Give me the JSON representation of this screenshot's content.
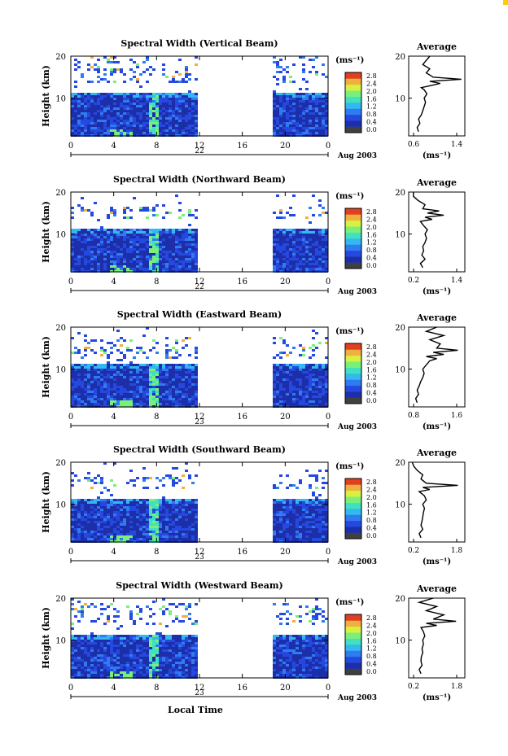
{
  "figure": {
    "xlabel_bottom": "Local Time",
    "date_label": "Aug 2003",
    "corner_color": "#ffcc00"
  },
  "colorbar": {
    "unit_label": "(ms⁻¹)",
    "tick_labels": [
      "0.0",
      "0.4",
      "0.8",
      "1.2",
      "1.6",
      "2.0",
      "2.4",
      "2.8"
    ],
    "colors": [
      "#404040",
      "#1d2fa8",
      "#2548e0",
      "#2f7cf0",
      "#33b8f0",
      "#40e0c0",
      "#7af07a",
      "#d8f040",
      "#f0b040",
      "#e04020"
    ]
  },
  "chart_data": [
    {
      "type": "heatmap",
      "title": "Spectral Width (Vertical Beam)",
      "ylabel": "Height (km)",
      "ylim": [
        1,
        20
      ],
      "yticks": [
        "20",
        "10"
      ],
      "xticks": [
        "0",
        "4",
        "8",
        "12",
        "16",
        "20",
        "0"
      ],
      "xlim": [
        0,
        24
      ],
      "day_label": "22",
      "data_gap": [
        12,
        18.6
      ],
      "heavy_height_top": 11.5,
      "upper_band": [
        14,
        20
      ],
      "plume_time": 7.5,
      "avg_title": "Average",
      "avg_xticks": [
        "0.6",
        "1.4"
      ],
      "avg_xlim": [
        0.6,
        1.4
      ],
      "avg_xlabel": "(ms⁻¹)",
      "avg_profile": [
        {
          "h": 2,
          "w": 0.74
        },
        {
          "h": 3,
          "w": 0.72
        },
        {
          "h": 4,
          "w": 0.76
        },
        {
          "h": 5,
          "w": 0.74
        },
        {
          "h": 6,
          "w": 0.78
        },
        {
          "h": 7,
          "w": 0.8
        },
        {
          "h": 8,
          "w": 0.82
        },
        {
          "h": 9,
          "w": 0.84
        },
        {
          "h": 10,
          "w": 0.82
        },
        {
          "h": 11,
          "w": 0.86
        },
        {
          "h": 12,
          "w": 0.82
        },
        {
          "h": 12.5,
          "w": 0.78
        },
        {
          "h": 13,
          "w": 0.92
        },
        {
          "h": 13.5,
          "w": 1.05
        },
        {
          "h": 14,
          "w": 0.9
        },
        {
          "h": 14.5,
          "w": 1.35
        },
        {
          "h": 15,
          "w": 0.95
        },
        {
          "h": 16,
          "w": 0.85
        },
        {
          "h": 17,
          "w": 0.9
        },
        {
          "h": 18,
          "w": 0.8
        },
        {
          "h": 19,
          "w": 0.85
        },
        {
          "h": 20,
          "w": 0.9
        }
      ]
    },
    {
      "type": "heatmap",
      "title": "Spectral Width (Northward Beam)",
      "ylabel": "Height (km)",
      "ylim": [
        1,
        20
      ],
      "yticks": [
        "20",
        "10"
      ],
      "xticks": [
        "0",
        "4",
        "8",
        "12",
        "16",
        "20",
        "0"
      ],
      "xlim": [
        0,
        24
      ],
      "day_label": "22",
      "data_gap": [
        12,
        18.6
      ],
      "heavy_height_top": 11.5,
      "upper_band": [
        14,
        17
      ],
      "plume_time": 7.5,
      "avg_title": "Average",
      "avg_xticks": [
        "0.2",
        "1.4"
      ],
      "avg_xlim": [
        0.2,
        1.4
      ],
      "avg_xlabel": "(ms⁻¹)",
      "avg_profile": [
        {
          "h": 2,
          "w": 0.5
        },
        {
          "h": 3,
          "w": 0.45
        },
        {
          "h": 4,
          "w": 0.55
        },
        {
          "h": 5,
          "w": 0.48
        },
        {
          "h": 6,
          "w": 0.52
        },
        {
          "h": 7,
          "w": 0.5
        },
        {
          "h": 8,
          "w": 0.55
        },
        {
          "h": 9,
          "w": 0.58
        },
        {
          "h": 10,
          "w": 0.55
        },
        {
          "h": 11,
          "w": 0.6
        },
        {
          "h": 12,
          "w": 0.52
        },
        {
          "h": 13,
          "w": 0.45
        },
        {
          "h": 13.5,
          "w": 0.7
        },
        {
          "h": 14,
          "w": 0.55
        },
        {
          "h": 14.5,
          "w": 0.95
        },
        {
          "h": 15,
          "w": 0.6
        },
        {
          "h": 15.5,
          "w": 0.85
        },
        {
          "h": 16,
          "w": 0.5
        },
        {
          "h": 17,
          "w": 0.55
        },
        {
          "h": 18,
          "w": 0.4
        },
        {
          "h": 19,
          "w": 0.3
        },
        {
          "h": 20,
          "w": 0.3
        }
      ]
    },
    {
      "type": "heatmap",
      "title": "Spectral Width (Eastward Beam)",
      "ylabel": "Height (km)",
      "ylim": [
        1,
        20
      ],
      "yticks": [
        "20",
        "10"
      ],
      "xticks": [
        "0",
        "4",
        "8",
        "12",
        "16",
        "20",
        "0"
      ],
      "xlim": [
        0,
        24
      ],
      "day_label": "23",
      "data_gap": [
        12,
        18.6
      ],
      "heavy_height_top": 11.5,
      "upper_band": [
        13,
        18
      ],
      "plume_time": 7.5,
      "avg_title": "Average",
      "avg_xticks": [
        "0.8",
        "1.6"
      ],
      "avg_xlim": [
        0.8,
        1.6
      ],
      "avg_xlabel": "(ms⁻¹)",
      "avg_profile": [
        {
          "h": 2,
          "w": 0.92
        },
        {
          "h": 3,
          "w": 0.9
        },
        {
          "h": 4,
          "w": 0.94
        },
        {
          "h": 5,
          "w": 0.92
        },
        {
          "h": 6,
          "w": 0.95
        },
        {
          "h": 7,
          "w": 0.97
        },
        {
          "h": 8,
          "w": 1.0
        },
        {
          "h": 9,
          "w": 1.02
        },
        {
          "h": 10,
          "w": 1.0
        },
        {
          "h": 11,
          "w": 1.05
        },
        {
          "h": 12,
          "w": 1.1
        },
        {
          "h": 12.5,
          "w": 1.2
        },
        {
          "h": 13,
          "w": 1.05
        },
        {
          "h": 13.5,
          "w": 1.3
        },
        {
          "h": 14,
          "w": 1.15
        },
        {
          "h": 14.5,
          "w": 1.5
        },
        {
          "h": 15,
          "w": 1.2
        },
        {
          "h": 16,
          "w": 1.25
        },
        {
          "h": 17,
          "w": 1.1
        },
        {
          "h": 18,
          "w": 1.3
        },
        {
          "h": 19,
          "w": 1.05
        },
        {
          "h": 20,
          "w": 1.2
        }
      ]
    },
    {
      "type": "heatmap",
      "title": "Spectral Width (Southward Beam)",
      "ylabel": "Height (km)",
      "ylim": [
        1,
        20
      ],
      "yticks": [
        "20",
        "10"
      ],
      "xticks": [
        "0",
        "4",
        "8",
        "12",
        "16",
        "20",
        "0"
      ],
      "xlim": [
        0,
        24
      ],
      "day_label": "23",
      "data_gap": [
        12,
        18.6
      ],
      "heavy_height_top": 11.5,
      "upper_band": [
        14,
        17.5
      ],
      "plume_time": 7.5,
      "avg_title": "Average",
      "avg_xticks": [
        "0.2",
        "1.8"
      ],
      "avg_xlim": [
        0.2,
        1.8
      ],
      "avg_xlabel": "(ms⁻¹)",
      "avg_profile": [
        {
          "h": 2,
          "w": 0.55
        },
        {
          "h": 3,
          "w": 0.5
        },
        {
          "h": 4,
          "w": 0.6
        },
        {
          "h": 5,
          "w": 0.55
        },
        {
          "h": 6,
          "w": 0.58
        },
        {
          "h": 7,
          "w": 0.6
        },
        {
          "h": 8,
          "w": 0.62
        },
        {
          "h": 9,
          "w": 0.65
        },
        {
          "h": 10,
          "w": 0.6
        },
        {
          "h": 11,
          "w": 0.7
        },
        {
          "h": 12,
          "w": 0.65
        },
        {
          "h": 13,
          "w": 0.5
        },
        {
          "h": 13.5,
          "w": 0.8
        },
        {
          "h": 14,
          "w": 0.6
        },
        {
          "h": 14.5,
          "w": 1.6
        },
        {
          "h": 15,
          "w": 0.7
        },
        {
          "h": 16,
          "w": 0.55
        },
        {
          "h": 17,
          "w": 0.6
        },
        {
          "h": 18,
          "w": 0.45
        },
        {
          "h": 19,
          "w": 0.35
        },
        {
          "h": 20,
          "w": 0.3
        }
      ]
    },
    {
      "type": "heatmap",
      "title": "Spectral Width (Westward Beam)",
      "ylabel": "Height (km)",
      "ylim": [
        1,
        20
      ],
      "yticks": [
        "20",
        "10"
      ],
      "xticks": [
        "0",
        "4",
        "8",
        "12",
        "16",
        "20",
        "0"
      ],
      "xlim": [
        0,
        24
      ],
      "day_label": "23",
      "data_gap": [
        12,
        18.6
      ],
      "heavy_height_top": 11.5,
      "upper_band": [
        14,
        19
      ],
      "plume_time": 7.5,
      "avg_title": "Average",
      "avg_xticks": [
        "0.2",
        "1.8"
      ],
      "avg_xlim": [
        0.2,
        1.8
      ],
      "avg_xlabel": "(ms⁻¹)",
      "avg_profile": [
        {
          "h": 2,
          "w": 0.55
        },
        {
          "h": 3,
          "w": 0.5
        },
        {
          "h": 4,
          "w": 0.58
        },
        {
          "h": 5,
          "w": 0.55
        },
        {
          "h": 6,
          "w": 0.56
        },
        {
          "h": 7,
          "w": 0.6
        },
        {
          "h": 8,
          "w": 0.58
        },
        {
          "h": 9,
          "w": 0.62
        },
        {
          "h": 10,
          "w": 0.6
        },
        {
          "h": 11,
          "w": 0.66
        },
        {
          "h": 12,
          "w": 0.62
        },
        {
          "h": 13,
          "w": 0.55
        },
        {
          "h": 13.5,
          "w": 1.0
        },
        {
          "h": 14,
          "w": 0.7
        },
        {
          "h": 14.5,
          "w": 1.55
        },
        {
          "h": 15,
          "w": 0.9
        },
        {
          "h": 16,
          "w": 1.2
        },
        {
          "h": 17,
          "w": 0.7
        },
        {
          "h": 18,
          "w": 1.0
        },
        {
          "h": 19,
          "w": 0.5
        },
        {
          "h": 20,
          "w": 0.9
        }
      ]
    }
  ]
}
